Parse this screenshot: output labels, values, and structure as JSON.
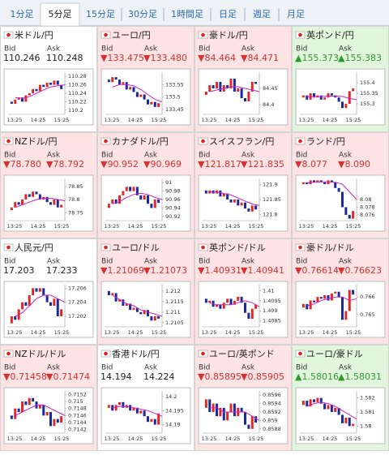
{
  "tabs": [
    "1分足",
    "5分足",
    "15分足",
    "30分足",
    "1時間足",
    "日足",
    "週足",
    "月足"
  ],
  "active_tab": 1,
  "bid_label": "Bid",
  "ask_label": "Ask",
  "xtick_labels": [
    "13:25",
    "14:25",
    "15:25"
  ],
  "tiles": [
    {
      "name": "米ドル/円",
      "bid": "110.246",
      "ask": "110.248",
      "trend": "flat",
      "chart": {
        "ylim": [
          110.19,
          110.29
        ],
        "yticks": [
          110.28,
          110.26,
          110.24,
          110.22,
          110.2
        ],
        "closes": [
          110.22,
          110.215,
          110.225,
          110.23,
          110.22,
          110.235,
          110.24,
          110.25,
          110.245,
          110.26,
          110.255,
          110.265,
          110.26,
          110.27,
          110.26,
          110.25
        ],
        "ma": [
          110.23,
          110.228,
          110.232,
          110.24,
          110.248,
          110.255,
          110.258,
          110.26
        ]
      }
    },
    {
      "name": "ユーロ/円",
      "bid": "▼133.475",
      "ask": "▼133.480",
      "trend": "down",
      "chart": {
        "ylim": [
          133.43,
          133.6
        ],
        "yticks": [
          133.55,
          133.5,
          133.45
        ],
        "closes": [
          133.57,
          133.56,
          133.58,
          133.57,
          133.55,
          133.56,
          133.53,
          133.54,
          133.52,
          133.5,
          133.51,
          133.49,
          133.47,
          133.48,
          133.46,
          133.475
        ],
        "ma": [
          133.54,
          133.55,
          133.55,
          133.545,
          133.53,
          133.51,
          133.49,
          133.48
        ]
      }
    },
    {
      "name": "豪ドル/円",
      "bid": "▼84.464",
      "ask": "▼84.471",
      "trend": "down",
      "chart": {
        "ylim": [
          84.37,
          84.5
        ],
        "yticks": [
          84.45,
          84.4
        ],
        "closes": [
          84.43,
          84.44,
          84.46,
          84.45,
          84.47,
          84.44,
          84.46,
          84.45,
          84.48,
          84.44,
          84.45,
          84.42,
          84.41,
          84.44,
          84.47,
          84.464
        ],
        "ma": [
          84.44,
          84.445,
          84.45,
          84.455,
          84.455,
          84.45,
          84.445,
          84.44
        ]
      }
    },
    {
      "name": "英ポンド/円",
      "bid": "▲155.373",
      "ask": "▲155.383",
      "trend": "up",
      "chart": {
        "ylim": [
          155.25,
          155.45
        ],
        "yticks": [
          155.4,
          155.35,
          155.3
        ],
        "closes": [
          155.33,
          155.34,
          155.32,
          155.35,
          155.33,
          155.34,
          155.32,
          155.33,
          155.35,
          155.34,
          155.33,
          155.31,
          155.28,
          155.3,
          155.36,
          155.373
        ],
        "ma": [
          155.335,
          155.334,
          155.335,
          155.336,
          155.337,
          155.335,
          155.325,
          155.32
        ]
      }
    },
    {
      "name": "NZドル/円",
      "bid": "▼78.780",
      "ask": "▼78.792",
      "trend": "down",
      "chart": {
        "ylim": [
          78.72,
          78.88
        ],
        "yticks": [
          78.85,
          78.8,
          78.75
        ],
        "closes": [
          78.76,
          78.77,
          78.79,
          78.78,
          78.8,
          78.82,
          78.81,
          78.83,
          78.82,
          78.8,
          78.81,
          78.79,
          78.78,
          78.8,
          78.77,
          78.78
        ],
        "ma": [
          78.77,
          78.78,
          78.79,
          78.8,
          78.805,
          78.805,
          78.8,
          78.795
        ]
      }
    },
    {
      "name": "カナダドル/円",
      "bid": "▼90.952",
      "ask": "▼90.969",
      "trend": "down",
      "chart": {
        "ylim": [
          90.91,
          91.01
        ],
        "yticks": [
          91,
          90.98,
          90.96,
          90.94,
          90.92
        ],
        "closes": [
          90.94,
          90.95,
          90.96,
          90.95,
          90.97,
          90.98,
          90.99,
          90.98,
          90.99,
          90.97,
          90.96,
          90.97,
          90.95,
          90.94,
          90.96,
          90.952
        ],
        "ma": [
          90.95,
          90.955,
          90.965,
          90.972,
          90.975,
          90.972,
          90.965,
          90.96
        ]
      }
    },
    {
      "name": "スイスフラン/円",
      "bid": "▼121.817",
      "ask": "▼121.835",
      "trend": "down",
      "chart": {
        "ylim": [
          121.78,
          121.92
        ],
        "yticks": [
          121.9,
          121.85,
          121.8
        ],
        "closes": [
          121.88,
          121.87,
          121.88,
          121.87,
          121.88,
          121.86,
          121.87,
          121.85,
          121.84,
          121.85,
          121.83,
          121.84,
          121.82,
          121.81,
          121.83,
          121.817
        ],
        "ma": [
          121.875,
          121.875,
          121.87,
          121.865,
          121.855,
          121.845,
          121.835,
          121.83
        ]
      }
    },
    {
      "name": "ランド/円",
      "bid": "▼8.077",
      "ask": "▼8.090",
      "trend": "down",
      "chart": {
        "ylim": [
          8.0745,
          8.0855
        ],
        "yticks": [
          8.08,
          8.078,
          8.076
        ],
        "closes": [
          8.084,
          8.0845,
          8.084,
          8.085,
          8.0845,
          8.085,
          8.0845,
          8.084,
          8.085,
          8.0845,
          8.083,
          8.082,
          8.078,
          8.076,
          8.075,
          8.077
        ],
        "ma": [
          8.0843,
          8.0845,
          8.0846,
          8.0846,
          8.0845,
          8.084,
          8.082,
          8.08
        ]
      }
    },
    {
      "name": "人民元/円",
      "bid": "17.203",
      "ask": "17.233",
      "trend": "flat",
      "chart": {
        "ylim": [
          17.2005,
          17.2065
        ],
        "yticks": [
          17.206,
          17.204,
          17.202
        ],
        "closes": [
          17.201,
          17.202,
          17.2015,
          17.203,
          17.204,
          17.2035,
          17.205,
          17.206,
          17.2055,
          17.206,
          17.205,
          17.204,
          17.2035,
          17.2045,
          17.202,
          17.203
        ],
        "ma": [
          17.202,
          17.2025,
          17.2035,
          17.2045,
          17.205,
          17.205,
          17.2045,
          17.204
        ]
      }
    },
    {
      "name": "ユーロ/ドル",
      "bid": "▼1.21069",
      "ask": "▼1.21073",
      "trend": "down",
      "chart": {
        "ylim": [
          1.2103,
          1.2123
        ],
        "yticks": [
          1.212,
          1.2115,
          1.211,
          1.2105
        ],
        "closes": [
          1.212,
          1.2118,
          1.2119,
          1.2115,
          1.2116,
          1.2113,
          1.2114,
          1.2111,
          1.2112,
          1.211,
          1.2109,
          1.2111,
          1.2108,
          1.2106,
          1.2108,
          1.21069
        ],
        "ma": [
          1.2118,
          1.2116,
          1.2114,
          1.2113,
          1.2111,
          1.211,
          1.2109,
          1.2108
        ]
      }
    },
    {
      "name": "英ポンド/ドル",
      "bid": "▼1.40931",
      "ask": "▼1.40941",
      "trend": "down",
      "chart": {
        "ylim": [
          1.4082,
          1.4103
        ],
        "yticks": [
          1.41,
          1.4095,
          1.409,
          1.4085
        ],
        "closes": [
          1.4096,
          1.4094,
          1.4095,
          1.4092,
          1.4093,
          1.4091,
          1.4094,
          1.4096,
          1.4093,
          1.4095,
          1.4097,
          1.4094,
          1.4089,
          1.4086,
          1.4091,
          1.40931
        ],
        "ma": [
          1.4094,
          1.4093,
          1.4093,
          1.4093,
          1.4094,
          1.4095,
          1.4094,
          1.4092
        ]
      }
    },
    {
      "name": "豪ドル/ドル",
      "bid": "▼0.76614",
      "ask": "▼0.76623",
      "trend": "down",
      "chart": {
        "ylim": [
          0.7643,
          0.7667
        ],
        "yticks": [
          0.766,
          0.765
        ],
        "closes": [
          0.7654,
          0.7656,
          0.7653,
          0.7658,
          0.7657,
          0.766,
          0.7659,
          0.7661,
          0.7658,
          0.7662,
          0.7663,
          0.766,
          0.7647,
          0.7652,
          0.7664,
          0.76614
        ],
        "ma": [
          0.7655,
          0.7656,
          0.7658,
          0.7659,
          0.766,
          0.766,
          0.7658,
          0.7659
        ]
      }
    },
    {
      "name": "NZドル/ドル",
      "bid": "▼0.71458",
      "ask": "▼0.71474",
      "trend": "down",
      "chart": {
        "ylim": [
          0.7141,
          0.7153
        ],
        "yticks": [
          0.7152,
          0.715,
          0.7148,
          0.7146,
          0.7144,
          0.7142
        ],
        "closes": [
          0.7146,
          0.7145,
          0.7148,
          0.7147,
          0.715,
          0.7149,
          0.7151,
          0.715,
          0.7148,
          0.7149,
          0.7146,
          0.7147,
          0.7143,
          0.7145,
          0.7144,
          0.71458
        ],
        "ma": [
          0.7146,
          0.7147,
          0.7148,
          0.7149,
          0.7149,
          0.7148,
          0.7147,
          0.7146
        ]
      }
    },
    {
      "name": "香港ドル/円",
      "bid": "14.194",
      "ask": "14.224",
      "trend": "flat",
      "chart": {
        "ylim": [
          14.187,
          14.202
        ],
        "yticks": [
          14.2,
          14.195,
          14.19
        ],
        "closes": [
          14.196,
          14.197,
          14.195,
          14.197,
          14.198,
          14.196,
          14.197,
          14.195,
          14.196,
          14.194,
          14.195,
          14.193,
          14.191,
          14.192,
          14.19,
          14.194
        ],
        "ma": [
          14.196,
          14.1965,
          14.1965,
          14.196,
          14.1955,
          14.195,
          14.194,
          14.193
        ]
      }
    },
    {
      "name": "ユーロ/英ポンド",
      "bid": "▼0.85895",
      "ask": "▼0.85905",
      "trend": "down",
      "chart": {
        "ylim": [
          0.8587,
          0.8597
        ],
        "yticks": [
          0.8596,
          0.8594,
          0.8592,
          0.859,
          0.8588
        ],
        "closes": [
          0.8593,
          0.8595,
          0.8592,
          0.8594,
          0.8591,
          0.8593,
          0.859,
          0.8592,
          0.8594,
          0.8591,
          0.8593,
          0.8592,
          0.8589,
          0.8588,
          0.8591,
          0.85895
        ],
        "ma": [
          0.8593,
          0.8593,
          0.8592,
          0.8592,
          0.8592,
          0.8592,
          0.8591,
          0.859
        ]
      }
    },
    {
      "name": "ユーロ/豪ドル",
      "bid": "▲1.58016",
      "ask": "▲1.58031",
      "trend": "up",
      "chart": {
        "ylim": [
          1.5795,
          1.5825
        ],
        "yticks": [
          1.582,
          1.581,
          1.58
        ],
        "closes": [
          1.5815,
          1.5818,
          1.5814,
          1.5819,
          1.5817,
          1.582,
          1.5816,
          1.5812,
          1.5815,
          1.581,
          1.5813,
          1.5808,
          1.5802,
          1.5806,
          1.58,
          1.58016
        ],
        "ma": [
          1.5814,
          1.5816,
          1.5817,
          1.5816,
          1.5814,
          1.5811,
          1.5808,
          1.5805
        ]
      }
    }
  ]
}
